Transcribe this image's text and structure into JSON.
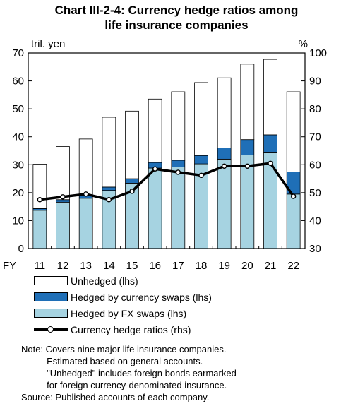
{
  "title_line1": "Chart III-2-4: Currency hedge ratios among",
  "title_line2": "life insurance companies",
  "chart_data": {
    "type": "bar",
    "stacked": true,
    "x_prefix": "FY",
    "categories": [
      "11",
      "12",
      "13",
      "14",
      "15",
      "16",
      "17",
      "18",
      "19",
      "20",
      "21",
      "22"
    ],
    "left_unit": "tril. yen",
    "right_unit": "%",
    "ylim_left": [
      0,
      70
    ],
    "yticks_left": [
      0,
      10,
      20,
      30,
      40,
      50,
      60,
      70
    ],
    "ylim_right": [
      30,
      100
    ],
    "yticks_right": [
      30,
      40,
      50,
      60,
      70,
      80,
      90,
      100
    ],
    "series": [
      {
        "name": "Hedged by FX swaps (lhs)",
        "kind": "bar",
        "color": "#a6d3e1",
        "values": [
          13.7,
          16.6,
          18.0,
          20.8,
          23.4,
          28.8,
          29.2,
          30.3,
          32.0,
          33.5,
          34.5,
          19.5
        ]
      },
      {
        "name": "Hedged by currency swaps (lhs)",
        "kind": "bar",
        "color": "#1f6fb7",
        "values": [
          0.6,
          0.9,
          0.9,
          1.2,
          1.6,
          2.0,
          2.4,
          3.0,
          4.0,
          5.5,
          6.2,
          7.9
        ]
      },
      {
        "name": "Unhedged (lhs)",
        "kind": "bar",
        "color": "#ffffff",
        "values": [
          15.9,
          19.0,
          20.3,
          25.0,
          24.2,
          22.7,
          24.5,
          26.1,
          25.1,
          27.0,
          27.0,
          28.7
        ]
      },
      {
        "name": "Currency hedge ratios (rhs)",
        "kind": "line",
        "axis": "right",
        "color": "#000000",
        "values": [
          47.5,
          48.5,
          49.5,
          47.5,
          50.5,
          58.5,
          57.3,
          56.2,
          59.5,
          59.5,
          60.5,
          48.7
        ]
      }
    ],
    "legend_order": [
      2,
      1,
      0,
      3
    ]
  },
  "legend": {
    "unhedged": "Unhedged (lhs)",
    "currency_swaps": "Hedged by currency swaps (lhs)",
    "fx_swaps": "Hedged by FX swaps (lhs)",
    "hedge_ratio": "Currency hedge ratios (rhs)"
  },
  "notes": {
    "line1": "Note: Covers nine major life insurance companies.",
    "line2": "          Estimated based on general accounts.",
    "line3": "          \"Unhedged\" includes foreign bonds earmarked",
    "line4": "          for foreign currency-denominated insurance.",
    "line5": "Source: Published accounts of each company."
  }
}
